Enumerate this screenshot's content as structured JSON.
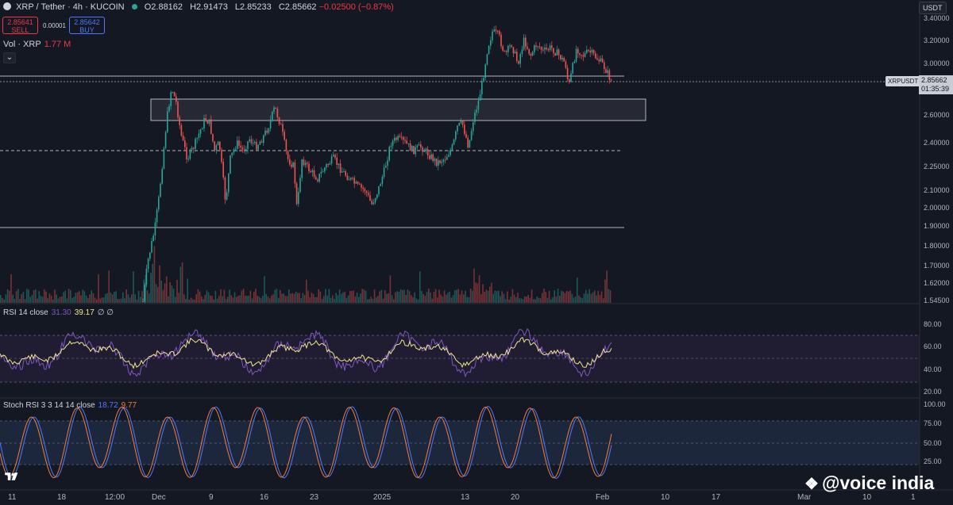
{
  "header": {
    "symbol": "XRP / Tether · 4h · KUCOIN",
    "open": "O2.88162",
    "high": "H2.91473",
    "low": "L2.85233",
    "close": "C2.85662",
    "change": "−0.02500 (−0.87%)"
  },
  "trade": {
    "sell_price": "2.85641",
    "sell_label": "SELL",
    "buy_price": "2.85642",
    "buy_label": "BUY",
    "spread": "0.00001"
  },
  "volume": {
    "label": "Vol · XRP",
    "value": "1.77 M"
  },
  "price_axis": {
    "currency": "USDT",
    "ticks": [
      "3.40000",
      "3.20000",
      "3.00000",
      "2.60000",
      "2.40000",
      "2.25000",
      "2.10000",
      "2.00000",
      "1.90000",
      "1.80000",
      "1.70000",
      "1.62000",
      "1.54500"
    ]
  },
  "current": {
    "symbol": "XRPUSDT",
    "price": "2.85662",
    "countdown": "01:35:39"
  },
  "rsi": {
    "label": "RSI 14 close",
    "value": "31.30",
    "ma": "39.17",
    "extra": "∅ ∅",
    "ticks": [
      "80.00",
      "60.00",
      "40.00",
      "20.00"
    ]
  },
  "stoch": {
    "label": "Stoch RSI 3 3 14 14 close",
    "k": "18.72",
    "d": "9.77",
    "ticks": [
      "100.00",
      "75.00",
      "50.00",
      "25.00"
    ]
  },
  "time_axis": [
    "11",
    "18",
    "12:00",
    "Dec",
    "9",
    "16",
    "23",
    "2025",
    "13",
    "20",
    "Feb",
    "10",
    "17",
    "Mar",
    "10",
    "1"
  ],
  "watermark": "@voice india",
  "colors": {
    "up": "#26a69a",
    "down": "#ef5350",
    "rsi": "#7e57c2",
    "stoch_k": "#4e79ff",
    "stoch_d": "#f77c3b"
  },
  "icons": {
    "logo": "tradingview-logo-icon",
    "collapse": "chevron-down-icon",
    "watermark": "diamond-logo-icon"
  }
}
